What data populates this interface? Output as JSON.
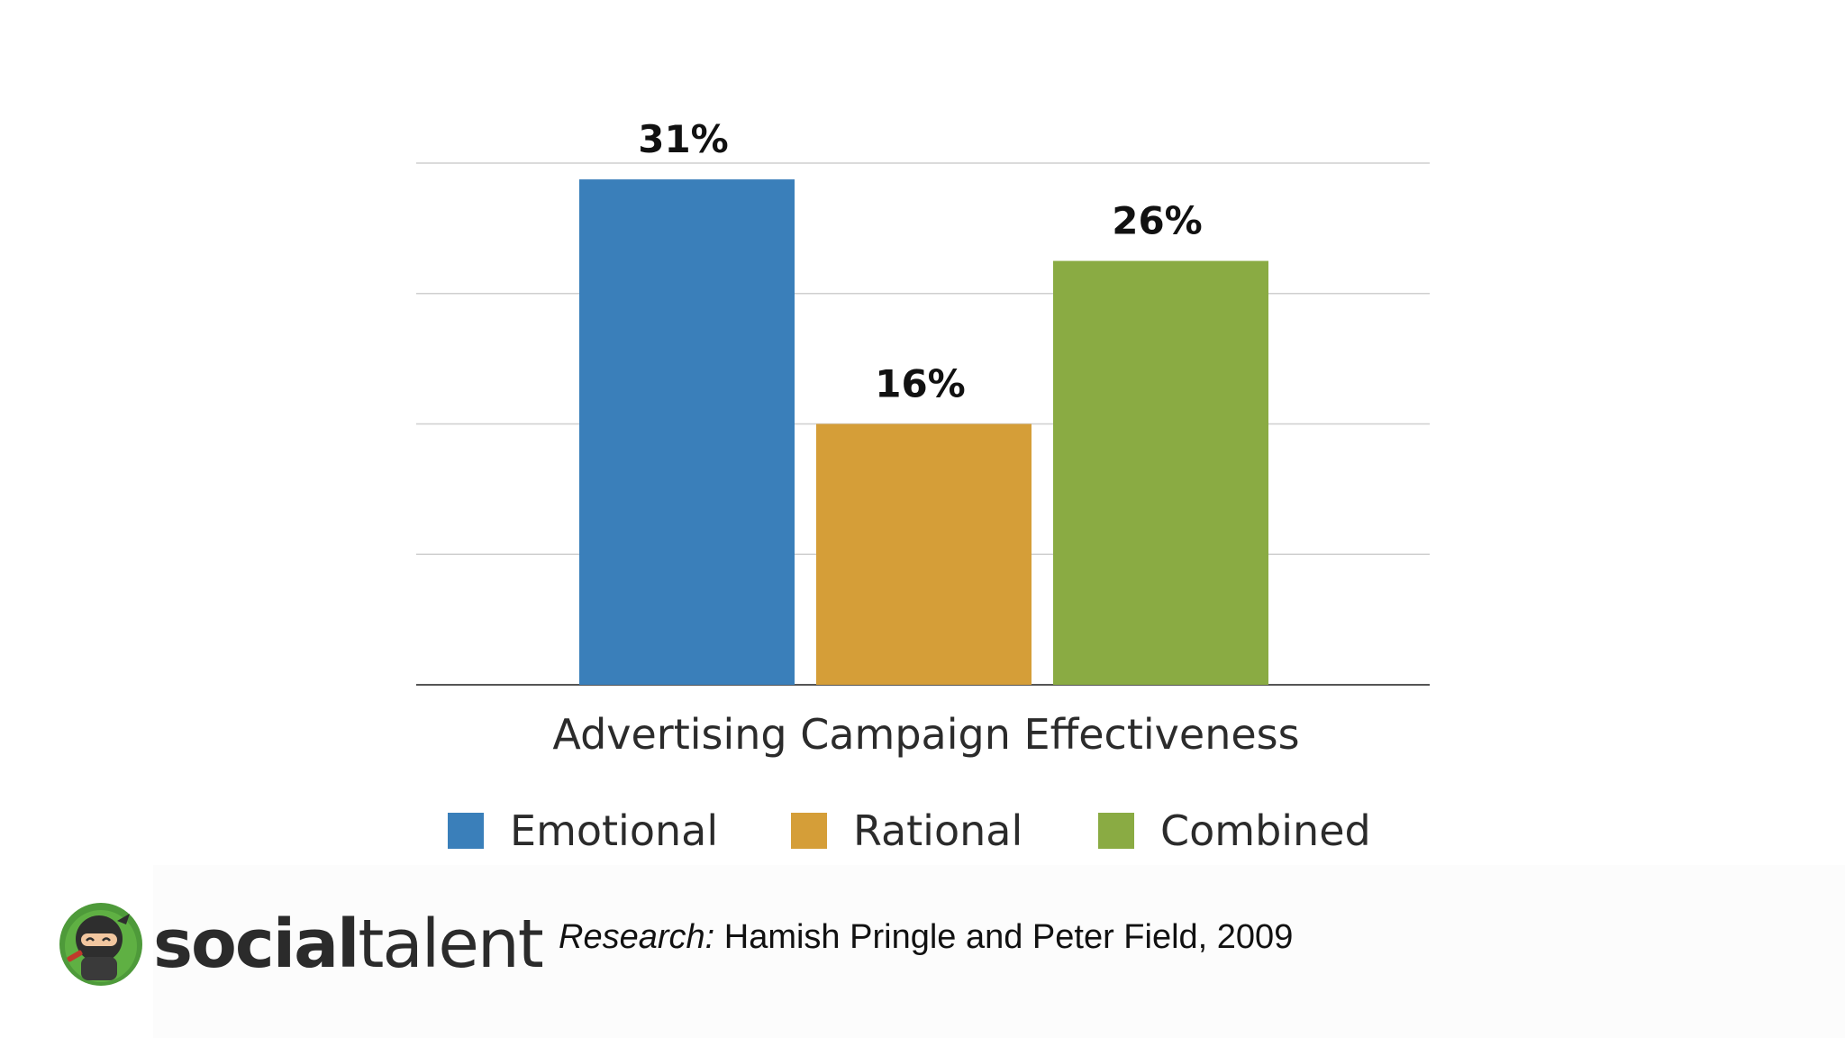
{
  "chart_data": {
    "type": "bar",
    "categories": [
      "Emotional",
      "Rational",
      "Combined"
    ],
    "values": [
      31,
      16,
      26
    ],
    "value_labels": [
      "31%",
      "16%",
      "26%"
    ],
    "xlabel": "Advertising Campaign Effectiveness",
    "ylabel": "",
    "ylim": [
      0,
      32
    ],
    "grid": true,
    "legend_placement": "bottom",
    "colors": [
      "#3a7fba",
      "#d59e38",
      "#8aab43"
    ]
  },
  "legend": {
    "items": [
      {
        "label": "Emotional",
        "color": "#3a7fba"
      },
      {
        "label": "Rational",
        "color": "#d59e38"
      },
      {
        "label": "Combined",
        "color": "#8aab43"
      }
    ]
  },
  "brand": {
    "name_bold": "social",
    "name_regular": "talent",
    "icon": "ninja-mascot-icon"
  },
  "citation": {
    "prefix": "Research:",
    "text": " Hamish Pringle and Peter Field, 2009"
  }
}
